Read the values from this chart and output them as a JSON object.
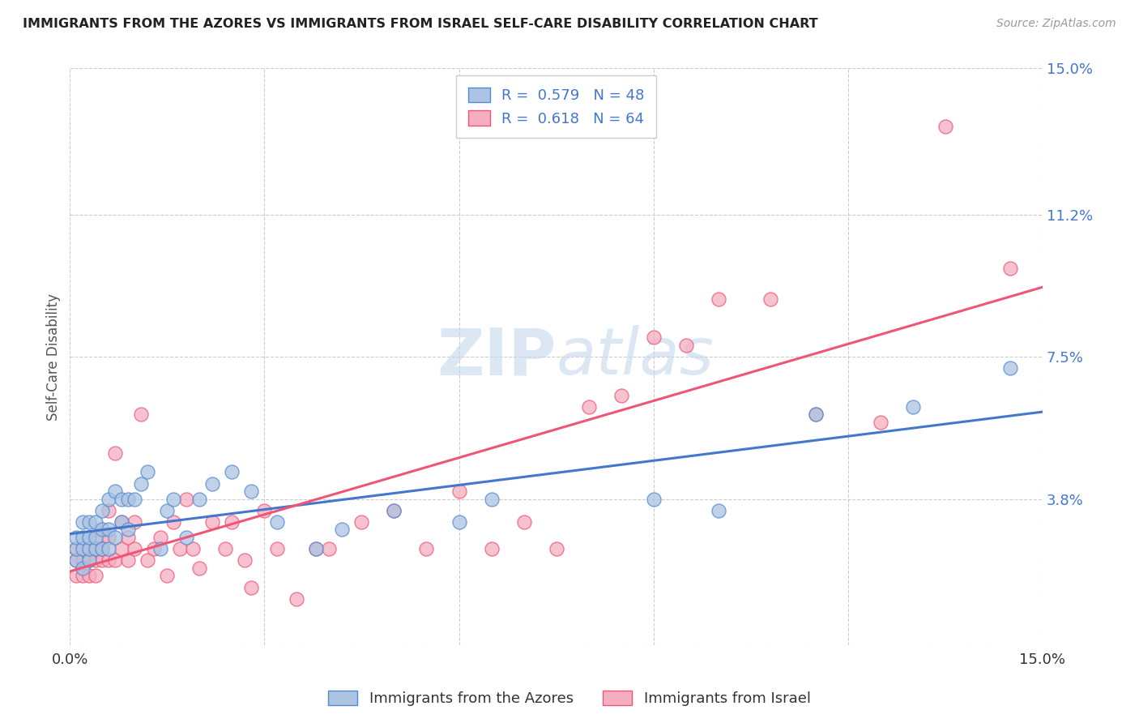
{
  "title": "IMMIGRANTS FROM THE AZORES VS IMMIGRANTS FROM ISRAEL SELF-CARE DISABILITY CORRELATION CHART",
  "source": "Source: ZipAtlas.com",
  "ylabel": "Self-Care Disability",
  "x_min": 0.0,
  "x_max": 0.15,
  "y_min": 0.0,
  "y_max": 0.15,
  "y_tick_vals_right": [
    0.0,
    0.038,
    0.075,
    0.112,
    0.15
  ],
  "x_grid_vals": [
    0.0,
    0.03,
    0.06,
    0.09,
    0.12,
    0.15
  ],
  "azores_color": "#aac4e2",
  "israel_color": "#f5aec0",
  "azores_edge_color": "#5588cc",
  "israel_edge_color": "#ee5577",
  "azores_line_color": "#4477cc",
  "israel_line_color": "#ee5577",
  "azores_R": 0.579,
  "azores_N": 48,
  "israel_R": 0.618,
  "israel_N": 64,
  "background_color": "#ffffff",
  "grid_color": "#cccccc",
  "watermark_zip": "ZIP",
  "watermark_atlas": "atlas",
  "azores_scatter_x": [
    0.001,
    0.001,
    0.001,
    0.002,
    0.002,
    0.002,
    0.002,
    0.003,
    0.003,
    0.003,
    0.003,
    0.004,
    0.004,
    0.004,
    0.005,
    0.005,
    0.005,
    0.006,
    0.006,
    0.006,
    0.007,
    0.007,
    0.008,
    0.008,
    0.009,
    0.009,
    0.01,
    0.011,
    0.012,
    0.014,
    0.015,
    0.016,
    0.018,
    0.02,
    0.022,
    0.025,
    0.028,
    0.032,
    0.038,
    0.042,
    0.05,
    0.06,
    0.065,
    0.09,
    0.1,
    0.115,
    0.13,
    0.145
  ],
  "azores_scatter_y": [
    0.022,
    0.025,
    0.028,
    0.02,
    0.025,
    0.028,
    0.032,
    0.022,
    0.025,
    0.028,
    0.032,
    0.025,
    0.028,
    0.032,
    0.025,
    0.03,
    0.035,
    0.025,
    0.03,
    0.038,
    0.028,
    0.04,
    0.032,
    0.038,
    0.03,
    0.038,
    0.038,
    0.042,
    0.045,
    0.025,
    0.035,
    0.038,
    0.028,
    0.038,
    0.042,
    0.045,
    0.04,
    0.032,
    0.025,
    0.03,
    0.035,
    0.032,
    0.038,
    0.038,
    0.035,
    0.06,
    0.062,
    0.072
  ],
  "israel_scatter_x": [
    0.001,
    0.001,
    0.001,
    0.002,
    0.002,
    0.002,
    0.003,
    0.003,
    0.003,
    0.003,
    0.004,
    0.004,
    0.004,
    0.005,
    0.005,
    0.005,
    0.006,
    0.006,
    0.006,
    0.007,
    0.007,
    0.008,
    0.008,
    0.009,
    0.009,
    0.01,
    0.01,
    0.011,
    0.012,
    0.013,
    0.014,
    0.015,
    0.016,
    0.017,
    0.018,
    0.019,
    0.02,
    0.022,
    0.024,
    0.025,
    0.027,
    0.028,
    0.03,
    0.032,
    0.035,
    0.038,
    0.04,
    0.045,
    0.05,
    0.055,
    0.06,
    0.065,
    0.07,
    0.075,
    0.08,
    0.085,
    0.09,
    0.095,
    0.1,
    0.108,
    0.115,
    0.125,
    0.135,
    0.145
  ],
  "israel_scatter_y": [
    0.018,
    0.022,
    0.025,
    0.018,
    0.022,
    0.025,
    0.018,
    0.022,
    0.025,
    0.028,
    0.018,
    0.022,
    0.025,
    0.022,
    0.025,
    0.028,
    0.022,
    0.028,
    0.035,
    0.022,
    0.05,
    0.025,
    0.032,
    0.022,
    0.028,
    0.025,
    0.032,
    0.06,
    0.022,
    0.025,
    0.028,
    0.018,
    0.032,
    0.025,
    0.038,
    0.025,
    0.02,
    0.032,
    0.025,
    0.032,
    0.022,
    0.015,
    0.035,
    0.025,
    0.012,
    0.025,
    0.025,
    0.032,
    0.035,
    0.025,
    0.04,
    0.025,
    0.032,
    0.025,
    0.062,
    0.065,
    0.08,
    0.078,
    0.09,
    0.09,
    0.06,
    0.058,
    0.135,
    0.098
  ]
}
